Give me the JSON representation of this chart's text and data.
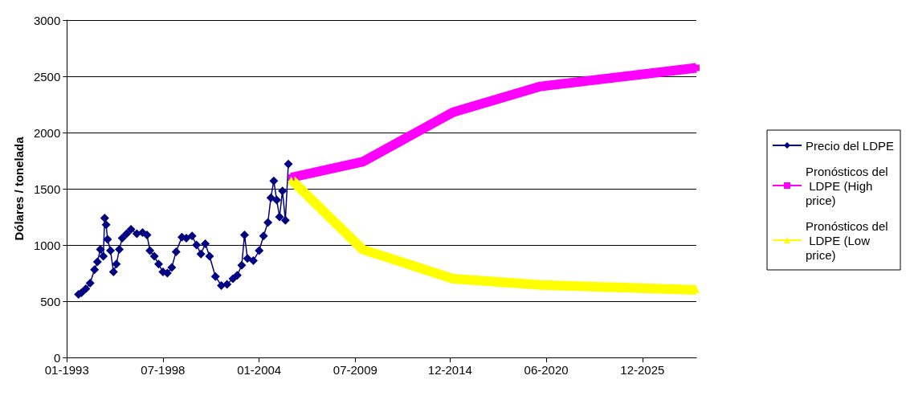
{
  "chart_data": {
    "type": "line",
    "ylabel": "Dólares / tonelada",
    "xlim": [
      "1993-01",
      "2029-01"
    ],
    "xticks": [
      {
        "value": "1993-01",
        "label": "01-1993"
      },
      {
        "value": "1998-07",
        "label": "07-1998"
      },
      {
        "value": "2004-01",
        "label": "01-2004"
      },
      {
        "value": "2009-07",
        "label": "07-2009"
      },
      {
        "value": "2014-12",
        "label": "12-2014"
      },
      {
        "value": "2020-06",
        "label": "06-2020"
      },
      {
        "value": "2025-12",
        "label": "12-2025"
      }
    ],
    "ylim": [
      0,
      3000
    ],
    "yticks": [
      0,
      500,
      1000,
      1500,
      2000,
      2500,
      3000
    ],
    "grid": "y",
    "legend": "right",
    "series": [
      {
        "name": "Precio del LDPE",
        "color": "#000080",
        "marker": "diamond",
        "x": [
          "1993-09",
          "1993-11",
          "1994-02",
          "1994-05",
          "1994-08",
          "1994-10",
          "1994-12",
          "1995-02",
          "1995-03",
          "1995-04",
          "1995-05",
          "1995-07",
          "1995-09",
          "1995-11",
          "1996-01",
          "1996-03",
          "1996-06",
          "1996-09",
          "1997-01",
          "1997-05",
          "1997-08",
          "1997-10",
          "1998-01",
          "1998-04",
          "1998-07",
          "1998-10",
          "1999-01",
          "1999-04",
          "1999-08",
          "1999-11",
          "2000-03",
          "2000-06",
          "2000-09",
          "2000-12",
          "2001-03",
          "2001-07",
          "2001-11",
          "2002-03",
          "2002-07",
          "2002-10",
          "2003-01",
          "2003-03",
          "2003-05",
          "2003-09",
          "2004-01",
          "2004-04",
          "2004-07",
          "2004-09",
          "2004-11",
          "2005-01",
          "2005-03",
          "2005-05",
          "2005-07",
          "2005-09"
        ],
        "values": [
          560,
          575,
          610,
          660,
          780,
          850,
          960,
          900,
          1240,
          1180,
          1050,
          950,
          760,
          830,
          960,
          1060,
          1100,
          1140,
          1100,
          1110,
          1090,
          950,
          900,
          830,
          760,
          750,
          800,
          940,
          1070,
          1060,
          1080,
          1000,
          920,
          1010,
          900,
          720,
          640,
          650,
          700,
          730,
          820,
          1090,
          880,
          860,
          950,
          1080,
          1200,
          1420,
          1570,
          1400,
          1250,
          1480,
          1220,
          1720
        ]
      },
      {
        "name": "Pronósticos del LDPE (High price)",
        "color": "#ff00ff",
        "marker": "square",
        "x": [
          "2005-11",
          "2009-12",
          "2015-02",
          "2020-02",
          "2029-01"
        ],
        "values": [
          1600,
          1740,
          2180,
          2410,
          2575
        ]
      },
      {
        "name": "Pronósticos del LDPE (Low price)",
        "color": "#ffff00",
        "marker": "triangle",
        "x": [
          "2005-11",
          "2009-12",
          "2015-02",
          "2020-02",
          "2029-01"
        ],
        "values": [
          1580,
          960,
          700,
          645,
          600
        ]
      }
    ]
  }
}
